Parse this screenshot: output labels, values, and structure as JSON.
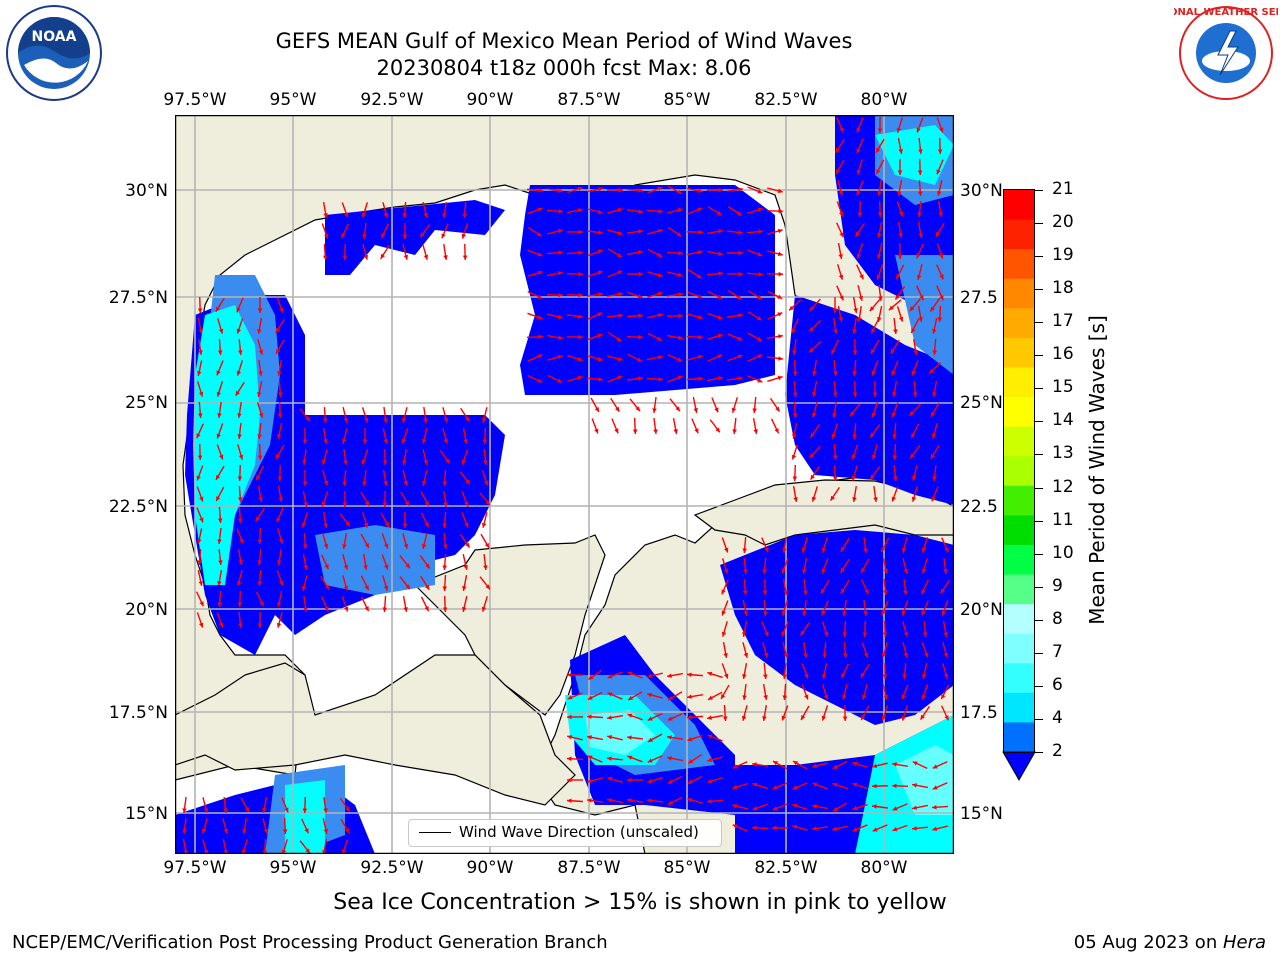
{
  "title": {
    "line1": "GEFS MEAN Gulf of Mexico Mean Period of Wind Waves",
    "line2": "20230804 t18z 000h fcst   Max: 8.06"
  },
  "logos": {
    "noaa": {
      "text": "NOAA",
      "icon": "noaa-logo-icon"
    },
    "nws": {
      "text": "NATIONAL WEATHER SERVICE",
      "icon": "nws-logo-icon"
    }
  },
  "map": {
    "lon_ticks": [
      "97.5°W",
      "95°W",
      "92.5°W",
      "90°W",
      "87.5°W",
      "85°W",
      "82.5°W",
      "80°W"
    ],
    "lat_ticks_left": [
      "30°N",
      "27.5°N",
      "25°N",
      "22.5°N",
      "20°N",
      "17.5°N",
      "15°N"
    ],
    "lat_ticks_right": [
      "30°N",
      "27.5",
      "25°N",
      "22.5",
      "20°N",
      "17.5",
      "15°N"
    ],
    "legend_label": "Wind Wave Direction (unscaled)",
    "colors": {
      "land": "#efeddc",
      "ocean_low": "#0000ff",
      "ocean_mid": "#3a8cf0",
      "ocean_high": "#00ffff",
      "ocean_top": "#66ffff",
      "arrow": "#ff0000",
      "grid": "#b4b4b4"
    }
  },
  "colorbar": {
    "label": "Mean Period of Wind Waves [s]",
    "ticks": [
      "2",
      "4",
      "6",
      "7",
      "8",
      "9",
      "10",
      "11",
      "12",
      "13",
      "14",
      "15",
      "16",
      "17",
      "18",
      "19",
      "20",
      "21"
    ],
    "colors": [
      "#0070ff",
      "#00e6ff",
      "#33ffff",
      "#7fffff",
      "#b4ffff",
      "#55ff88",
      "#00ff44",
      "#00dd00",
      "#44ee00",
      "#aaff00",
      "#ccff00",
      "#ffff00",
      "#ffee00",
      "#ffc800",
      "#ffaa00",
      "#ff8800",
      "#ff5500",
      "#ff2200",
      "#ff0000"
    ]
  },
  "note": "Sea Ice Concentration > 15% is shown in pink to yellow",
  "footer": {
    "left": "NCEP/EMC/Verification Post Processing Product Generation Branch",
    "right_date": "05 Aug 2023 on ",
    "right_host": "Hera"
  }
}
